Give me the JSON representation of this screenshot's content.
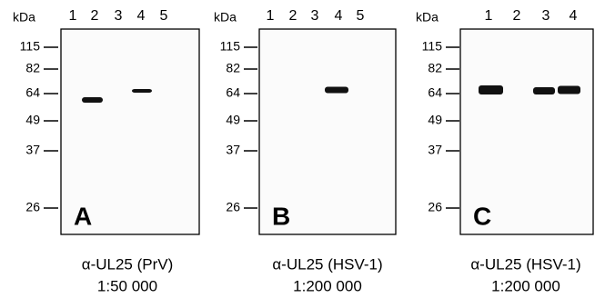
{
  "panels": [
    {
      "unit": "kDa",
      "lanes": [
        "1",
        "2",
        "3",
        "4",
        "5"
      ],
      "markers": [
        "115",
        "82",
        "64",
        "49",
        "37",
        "26"
      ],
      "letter": "A",
      "caption": [
        "α-UL25 (PrV)",
        "1:50 000"
      ]
    },
    {
      "unit": "kDa",
      "lanes": [
        "1",
        "2",
        "3",
        "4",
        "5"
      ],
      "markers": [
        "115",
        "82",
        "64",
        "49",
        "37",
        "26"
      ],
      "letter": "B",
      "caption": [
        "α-UL25 (HSV-1)",
        "1:200 000"
      ]
    },
    {
      "unit": "kDa",
      "lanes": [
        "1",
        "2",
        "3",
        "4"
      ],
      "markers": [
        "115",
        "82",
        "64",
        "49",
        "37",
        "26"
      ],
      "letter": "C",
      "caption": [
        "α-UL25 (HSV-1)",
        "1:200 000"
      ]
    }
  ]
}
